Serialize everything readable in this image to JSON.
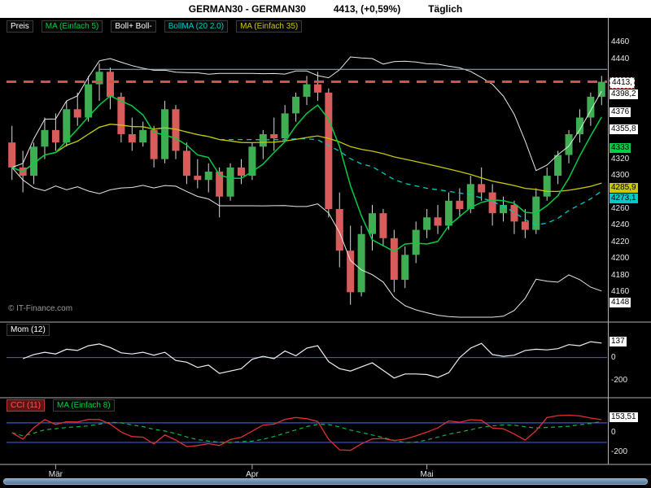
{
  "header": {
    "symbol": "GERMAN30 - GERMAN30",
    "quote": "4413, (+0,59%)",
    "period": "Täglich"
  },
  "watermark": "© IT-Finance.com",
  "colors": {
    "up": "#3fae53",
    "down": "#d95c5c",
    "wick": "#d8d8d8",
    "ma_fast": "#00cc44",
    "ma_slow": "#c8c800",
    "boll_band": "#e8e8e8",
    "boll_mid": "#00c8c8",
    "price_line": "#cc5544",
    "hline": "#9db0d0",
    "mom_line": "#f0f0f0",
    "zero_line": "#3a54d6",
    "cci_line": "#e03030",
    "cci_ma": "#00bb44"
  },
  "main_legend": [
    {
      "label": "Preis",
      "color": "#ffffff"
    },
    {
      "label": "MA (Einfach 5)",
      "color": "#00cc44"
    },
    {
      "label": "Boll+ Boll-",
      "color": "#ffffff"
    },
    {
      "label": "BollMA (20 2.0)",
      "color": "#00c8c8"
    },
    {
      "label": "MA (Einfach 35)",
      "color": "#c8c800"
    }
  ],
  "mom_legend": [
    {
      "label": "Mom (12)",
      "color": "#ffffff"
    }
  ],
  "cci_legend": [
    {
      "label": "CCI (11)",
      "color": "#ff5555",
      "highlight": true
    },
    {
      "label": "MA (Einfach 8)",
      "color": "#00cc44"
    }
  ],
  "price_axis": [
    {
      "text": "4460",
      "value": 4460,
      "style": "tick"
    },
    {
      "text": "4440",
      "value": 4440,
      "style": "tick"
    },
    {
      "text": "4413,",
      "value": 4413,
      "style": "price"
    },
    {
      "text": "4398,2",
      "value": 4398.2,
      "style": "white"
    },
    {
      "text": "4376",
      "value": 4376,
      "style": "white"
    },
    {
      "text": "4355,8",
      "value": 4355.8,
      "style": "white"
    },
    {
      "text": "4333",
      "value": 4333,
      "style": "green"
    },
    {
      "text": "4320",
      "value": 4320,
      "style": "tick"
    },
    {
      "text": "4300",
      "value": 4300,
      "style": "tick"
    },
    {
      "text": "4285,9",
      "value": 4285.9,
      "style": "yellow"
    },
    {
      "text": "4273,1",
      "value": 4273.1,
      "style": "cyan"
    },
    {
      "text": "4260",
      "value": 4260,
      "style": "tick"
    },
    {
      "text": "4240",
      "value": 4240,
      "style": "tick"
    },
    {
      "text": "4220",
      "value": 4220,
      "style": "tick"
    },
    {
      "text": "4200",
      "value": 4200,
      "style": "tick"
    },
    {
      "text": "4180",
      "value": 4180,
      "style": "tick"
    },
    {
      "text": "4160",
      "value": 4160,
      "style": "tick"
    },
    {
      "text": "4148",
      "value": 4148,
      "style": "white"
    }
  ],
  "mom_axis": [
    {
      "text": "137",
      "value": 137,
      "style": "white"
    },
    {
      "text": "0",
      "value": 0,
      "style": "tick"
    },
    {
      "text": "-200",
      "value": -200,
      "style": "tick"
    }
  ],
  "cci_axis": [
    {
      "text": "153,51",
      "value": 153.51,
      "style": "white"
    },
    {
      "text": "0",
      "value": 0,
      "style": "tick"
    },
    {
      "text": "-200",
      "value": -200,
      "style": "tick"
    }
  ],
  "time_axis": [
    {
      "index": 4,
      "label": "Mär"
    },
    {
      "index": 22,
      "label": "Apr"
    },
    {
      "index": 38,
      "label": "Mai"
    }
  ],
  "chart_data": {
    "type": "candlestick",
    "title": "GERMAN30 Täglich",
    "price_line": 4413,
    "hline": 4428,
    "price_range": [
      4130,
      4480
    ],
    "mom_range": [
      -280,
      260
    ],
    "cci_range": [
      -300,
      290
    ],
    "mom_lines": [
      0
    ],
    "cci_lines": [
      100,
      -100
    ],
    "indicators": {
      "ma_fast": 5,
      "ma_slow": 35,
      "boll": [
        20,
        2
      ],
      "mom": 12,
      "cci": 11,
      "cci_ma": 8
    },
    "ohlc": [
      [
        4340,
        4360,
        4295,
        4310
      ],
      [
        4310,
        4330,
        4280,
        4300
      ],
      [
        4300,
        4340,
        4290,
        4335
      ],
      [
        4335,
        4370,
        4320,
        4355
      ],
      [
        4355,
        4375,
        4330,
        4340
      ],
      [
        4340,
        4390,
        4335,
        4380
      ],
      [
        4380,
        4400,
        4360,
        4370
      ],
      [
        4370,
        4420,
        4365,
        4410
      ],
      [
        4410,
        4435,
        4390,
        4425
      ],
      [
        4425,
        4430,
        4380,
        4395
      ],
      [
        4395,
        4400,
        4340,
        4350
      ],
      [
        4350,
        4370,
        4330,
        4340
      ],
      [
        4340,
        4365,
        4335,
        4355
      ],
      [
        4355,
        4360,
        4310,
        4320
      ],
      [
        4320,
        4390,
        4315,
        4380
      ],
      [
        4380,
        4385,
        4320,
        4330
      ],
      [
        4330,
        4340,
        4290,
        4300
      ],
      [
        4300,
        4320,
        4285,
        4295
      ],
      [
        4295,
        4315,
        4280,
        4305
      ],
      [
        4305,
        4310,
        4250,
        4275
      ],
      [
        4275,
        4315,
        4270,
        4310
      ],
      [
        4310,
        4320,
        4290,
        4300
      ],
      [
        4300,
        4340,
        4295,
        4335
      ],
      [
        4335,
        4355,
        4320,
        4350
      ],
      [
        4350,
        4370,
        4330,
        4345
      ],
      [
        4345,
        4385,
        4340,
        4375
      ],
      [
        4375,
        4400,
        4365,
        4395
      ],
      [
        4395,
        4420,
        4385,
        4410
      ],
      [
        4410,
        4425,
        4390,
        4400
      ],
      [
        4400,
        4405,
        4250,
        4260
      ],
      [
        4260,
        4280,
        4190,
        4210
      ],
      [
        4210,
        4240,
        4145,
        4160
      ],
      [
        4160,
        4240,
        4155,
        4230
      ],
      [
        4230,
        4265,
        4210,
        4255
      ],
      [
        4255,
        4260,
        4215,
        4225
      ],
      [
        4225,
        4235,
        4160,
        4175
      ],
      [
        4175,
        4215,
        4165,
        4205
      ],
      [
        4205,
        4245,
        4195,
        4235
      ],
      [
        4235,
        4260,
        4225,
        4250
      ],
      [
        4250,
        4265,
        4230,
        4240
      ],
      [
        4240,
        4280,
        4235,
        4270
      ],
      [
        4270,
        4285,
        4250,
        4260
      ],
      [
        4260,
        4300,
        4255,
        4290
      ],
      [
        4290,
        4310,
        4270,
        4280
      ],
      [
        4280,
        4290,
        4240,
        4255
      ],
      [
        4255,
        4275,
        4245,
        4265
      ],
      [
        4265,
        4270,
        4230,
        4245
      ],
      [
        4245,
        4260,
        4225,
        4235
      ],
      [
        4235,
        4285,
        4230,
        4275
      ],
      [
        4275,
        4310,
        4270,
        4300
      ],
      [
        4300,
        4330,
        4290,
        4325
      ],
      [
        4325,
        4355,
        4315,
        4350
      ],
      [
        4350,
        4380,
        4340,
        4370
      ],
      [
        4370,
        4400,
        4360,
        4395
      ],
      [
        4395,
        4420,
        4385,
        4413
      ]
    ]
  }
}
